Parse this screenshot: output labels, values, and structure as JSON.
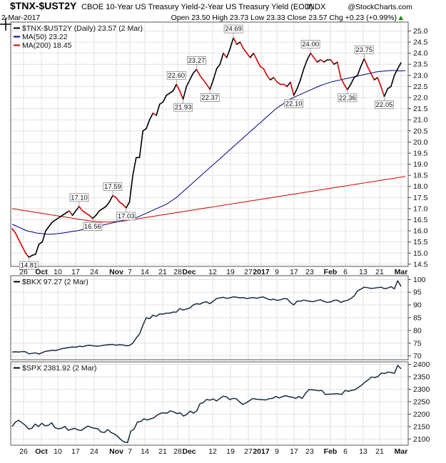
{
  "header": {
    "symbol": "$TNX-$UST2Y",
    "title": "CBOE 10-Year US Treasury Yield-2-Year US Treasury Yield (EOD)",
    "tag": "INDX",
    "source": "@StockCharts.com",
    "date": "2-Mar-2017",
    "quote": "Open 23.50  High 23.73  Low 23.33  Close 23.57  Chg +0.23 (+0.99%)",
    "quote_arrow": "▲"
  },
  "chart_data": [
    {
      "type": "line",
      "panel": "main",
      "x_ticks": [
        "26",
        "Oct",
        "10",
        "17",
        "24",
        "Nov",
        "7",
        "14",
        "21",
        "28",
        "Dec",
        "12",
        "19",
        "27",
        "2017",
        "9",
        "17",
        "23",
        "Feb",
        "6",
        "13",
        "21",
        "Mar"
      ],
      "x_ticks_bold": [
        "Oct",
        "Nov",
        "Dec",
        "2017",
        "Feb",
        "Mar"
      ],
      "y_ticks": [
        14.5,
        15.0,
        15.5,
        16.0,
        16.5,
        17.0,
        17.5,
        18.0,
        18.5,
        19.0,
        19.5,
        20.0,
        20.5,
        21.0,
        21.5,
        22.0,
        22.5,
        23.0,
        23.5,
        24.0,
        24.5,
        25.0
      ],
      "ylim": [
        14.4,
        25.4
      ],
      "legend": [
        {
          "label": "$TNX-$UST2Y (Daily) 23.57 (2 Mar)",
          "color": "#000000"
        },
        {
          "label": "MA(50) 23.22",
          "color": "#00008b"
        },
        {
          "label": "MA(200) 18.45",
          "color": "#cc0000"
        }
      ],
      "price": [
        16.1,
        15.9,
        15.6,
        15.3,
        15.0,
        14.81,
        14.9,
        14.95,
        15.4,
        15.5,
        16.0,
        16.2,
        16.4,
        16.5,
        16.6,
        16.7,
        16.8,
        16.9,
        16.7,
        16.9,
        17.1,
        16.9,
        16.8,
        16.7,
        16.56,
        16.7,
        16.9,
        17.0,
        17.1,
        17.3,
        17.59,
        17.5,
        17.3,
        17.2,
        17.03,
        17.3,
        18.5,
        19.3,
        19.3,
        20.5,
        20.6,
        21.0,
        21.3,
        21.2,
        21.7,
        21.8,
        22.1,
        22.2,
        22.3,
        22.6,
        22.3,
        21.93,
        22.5,
        22.8,
        23.1,
        23.27,
        23.0,
        22.8,
        22.6,
        22.37,
        22.8,
        23.3,
        23.5,
        24.0,
        23.8,
        24.2,
        24.69,
        24.4,
        24.5,
        24.2,
        24.0,
        23.8,
        24.0,
        23.7,
        23.4,
        23.3,
        23.0,
        22.8,
        22.9,
        22.7,
        22.6,
        22.6,
        22.5,
        22.7,
        22.1,
        22.4,
        22.8,
        23.3,
        23.7,
        24.0,
        23.8,
        23.6,
        23.7,
        23.6,
        23.7,
        23.7,
        23.5,
        23.6,
        22.9,
        22.6,
        22.36,
        22.6,
        22.9,
        23.0,
        23.4,
        23.75,
        23.4,
        23.1,
        22.8,
        22.9,
        22.5,
        22.05,
        22.4,
        22.5,
        23.0,
        23.3,
        23.57
      ],
      "price_colors": [
        "red",
        "red",
        "red",
        "red",
        "red",
        "red",
        "black",
        "black",
        "black",
        "black",
        "black",
        "black",
        "black",
        "black",
        "black",
        "black",
        "black",
        "black",
        "red",
        "black",
        "black",
        "red",
        "red",
        "red",
        "red",
        "black",
        "black",
        "black",
        "black",
        "black",
        "black",
        "red",
        "red",
        "red",
        "red",
        "black",
        "black",
        "black",
        "black",
        "black",
        "black",
        "black",
        "black",
        "red",
        "black",
        "black",
        "black",
        "black",
        "black",
        "black",
        "red",
        "red",
        "black",
        "black",
        "black",
        "black",
        "red",
        "red",
        "red",
        "red",
        "black",
        "black",
        "black",
        "black",
        "red",
        "black",
        "black",
        "red",
        "black",
        "red",
        "red",
        "red",
        "black",
        "red",
        "red",
        "red",
        "red",
        "red",
        "black",
        "red",
        "red",
        "red",
        "red",
        "black",
        "red",
        "black",
        "black",
        "black",
        "black",
        "black",
        "red",
        "red",
        "black",
        "red",
        "black",
        "black",
        "red",
        "black",
        "red",
        "red",
        "red",
        "black",
        "black",
        "black",
        "black",
        "black",
        "red",
        "red",
        "red",
        "black",
        "red",
        "red",
        "black",
        "black",
        "black",
        "black"
      ],
      "ma50": [
        16.3,
        16.2,
        16.1,
        16.0,
        15.95,
        15.9,
        15.88,
        15.85,
        15.85,
        15.87,
        15.9,
        15.93,
        15.97,
        16.0,
        16.05,
        16.1,
        16.15,
        16.2,
        16.25,
        16.3,
        16.35,
        16.4,
        16.45,
        16.5,
        16.55,
        16.6,
        16.7,
        16.8,
        16.9,
        17.0,
        17.1,
        17.2,
        17.35,
        17.5,
        17.7,
        17.9,
        18.1,
        18.3,
        18.5,
        18.7,
        18.9,
        19.1,
        19.3,
        19.5,
        19.7,
        19.9,
        20.1,
        20.3,
        20.5,
        20.7,
        20.9,
        21.1,
        21.3,
        21.5,
        21.65,
        21.8,
        21.95,
        22.05,
        22.15,
        22.25,
        22.35,
        22.45,
        22.55,
        22.62,
        22.7,
        22.75,
        22.8,
        22.85,
        22.9,
        22.95,
        23.0,
        23.05,
        23.1,
        23.15,
        23.18,
        23.2,
        23.22,
        23.22,
        23.2,
        23.22
      ],
      "ma200": [
        17.0,
        16.95,
        16.9,
        16.85,
        16.8,
        16.75,
        16.7,
        16.65,
        16.6,
        16.55,
        16.5,
        16.45,
        16.42,
        16.4,
        16.4,
        16.42,
        16.45,
        16.5,
        16.55,
        16.6,
        16.65,
        16.7,
        16.75,
        16.8,
        16.85,
        16.9,
        16.95,
        17.0,
        17.05,
        17.1,
        17.15,
        17.2,
        17.25,
        17.3,
        17.35,
        17.4,
        17.45,
        17.5,
        17.55,
        17.6,
        17.65,
        17.7,
        17.75,
        17.8,
        17.85,
        17.9,
        17.95,
        18.0,
        18.05,
        18.1,
        18.15,
        18.2,
        18.25,
        18.3,
        18.35,
        18.4,
        18.45
      ],
      "annotations": [
        {
          "label": "14.81",
          "index": 5,
          "pos": "below"
        },
        {
          "label": "17.10",
          "index": 20,
          "pos": "above"
        },
        {
          "label": "16.56",
          "index": 24,
          "pos": "below"
        },
        {
          "label": "17.59",
          "index": 30,
          "pos": "above"
        },
        {
          "label": "17.03",
          "index": 34,
          "pos": "below"
        },
        {
          "label": "22.60",
          "index": 49,
          "pos": "above"
        },
        {
          "label": "21.93",
          "index": 51,
          "pos": "below"
        },
        {
          "label": "23.27",
          "index": 55,
          "pos": "above"
        },
        {
          "label": "22.37",
          "index": 59,
          "pos": "below"
        },
        {
          "label": "24.69",
          "index": 66,
          "pos": "above"
        },
        {
          "label": "22.10",
          "index": 84,
          "pos": "below"
        },
        {
          "label": "24.00",
          "index": 89,
          "pos": "above"
        },
        {
          "label": "22.36",
          "index": 100,
          "pos": "below"
        },
        {
          "label": "23.75",
          "index": 105,
          "pos": "above"
        },
        {
          "label": "22.05",
          "index": 111,
          "pos": "below"
        }
      ]
    },
    {
      "type": "line",
      "panel": "bkx",
      "legend": {
        "label": "$BKX 97.27 (2 Mar)",
        "color": "#000000"
      },
      "y_ticks": [
        70,
        75,
        80,
        85,
        90,
        95,
        100
      ],
      "ylim": [
        68.5,
        101.5
      ],
      "values": [
        71.5,
        71.6,
        71.5,
        71.7,
        71.6,
        70.8,
        71.0,
        71.2,
        70.7,
        71.3,
        71.8,
        72.0,
        72.2,
        72.1,
        72.5,
        72.9,
        73.1,
        73.3,
        73.5,
        73.4,
        73.8,
        73.6,
        74.0,
        74.2,
        74.0,
        73.8,
        73.9,
        74.1,
        74.3,
        74.4,
        74.5,
        74.2,
        74.4,
        74.3,
        74.0,
        74.1,
        75.0,
        77.0,
        78.6,
        82.0,
        85.0,
        84.6,
        86.0,
        85.5,
        86.5,
        86.4,
        86.8,
        86.8,
        87.2,
        87.2,
        88.6,
        88.0,
        88.4,
        88.8,
        90.0,
        90.5,
        90.3,
        91.0,
        91.2,
        90.5,
        91.5,
        92.5,
        92.8,
        93.0,
        92.6,
        92.8,
        93.2,
        93.0,
        92.8,
        92.9,
        92.5,
        92.8,
        92.9,
        92.6,
        93.0,
        93.1,
        92.5,
        92.0,
        92.3,
        91.8,
        92.0,
        92.5,
        92.4,
        91.0,
        90.0,
        91.5,
        91.5,
        91.9,
        91.6,
        91.4,
        91.3,
        91.8,
        92.0,
        91.4,
        91.0,
        91.2,
        91.8,
        91.9,
        91.0,
        91.5,
        91.8,
        92.5,
        93.5,
        95.5,
        96.2,
        97.0,
        96.8,
        96.5,
        96.6,
        96.8,
        97.0,
        96.4,
        96.6,
        97.2,
        96.3,
        99.5,
        97.27
      ]
    },
    {
      "type": "line",
      "panel": "spx",
      "legend": {
        "label": "$SPX 2381.92 (2 Mar)",
        "color": "#000000"
      },
      "y_ticks": [
        2100,
        2150,
        2200,
        2250,
        2300,
        2350,
        2400
      ],
      "ylim": [
        2075,
        2410
      ],
      "values": [
        2150,
        2168,
        2175,
        2165,
        2155,
        2140,
        2143,
        2160,
        2150,
        2163,
        2153,
        2155,
        2165,
        2145,
        2141,
        2143,
        2150,
        2135,
        2139,
        2143,
        2136,
        2134,
        2144,
        2152,
        2146,
        2143,
        2141,
        2128,
        2126,
        2138,
        2126,
        2120,
        2111,
        2097,
        2088,
        2085,
        2131,
        2140,
        2168,
        2170,
        2181,
        2176,
        2181,
        2185,
        2196,
        2203,
        2205,
        2204,
        2213,
        2209,
        2202,
        2205,
        2192,
        2199,
        2212,
        2204,
        2212,
        2242,
        2246,
        2259,
        2256,
        2261,
        2253,
        2262,
        2272,
        2270,
        2258,
        2263,
        2262,
        2249,
        2239,
        2245,
        2254,
        2263,
        2260,
        2259,
        2258,
        2257,
        2262,
        2263,
        2271,
        2265,
        2270,
        2274,
        2270,
        2268,
        2263,
        2271,
        2263,
        2283,
        2298,
        2298,
        2296,
        2294,
        2295,
        2279,
        2280,
        2280,
        2282,
        2281,
        2279,
        2295,
        2292,
        2295,
        2298,
        2307,
        2316,
        2328,
        2337,
        2349,
        2347,
        2351,
        2365,
        2363,
        2369,
        2367,
        2364,
        2396,
        2381.92
      ]
    }
  ]
}
